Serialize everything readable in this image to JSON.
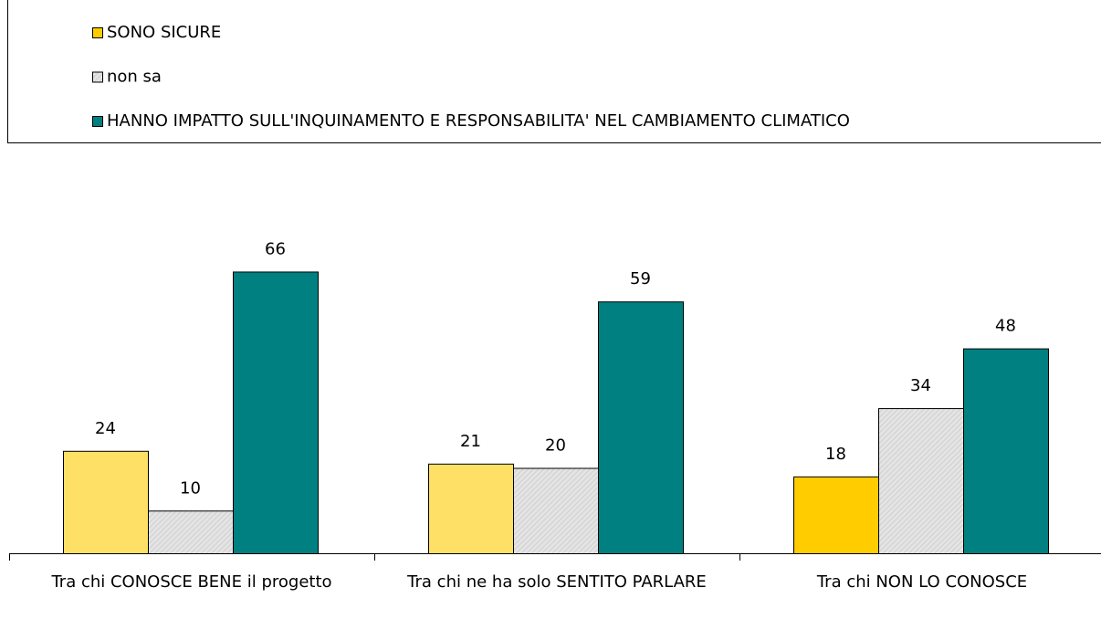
{
  "chart_data": {
    "type": "bar",
    "categories": [
      "Tra chi CONOSCE BENE il progetto",
      "Tra chi ne ha solo SENTITO PARLARE",
      "Tra chi NON LO CONOSCE"
    ],
    "series": [
      {
        "name": "SONO SICURE",
        "color": "#ffcc00",
        "colors": [
          "#ffe066",
          "#ffe066",
          "#ffcc00"
        ],
        "values": [
          24,
          21,
          18
        ]
      },
      {
        "name": "non sa",
        "color": "#e4e4e4",
        "values": [
          10,
          20,
          34
        ]
      },
      {
        "name": "HANNO IMPATTO SULL'INQUINAMENTO E RESPONSABILITA' NEL CAMBIAMENTO CLIMATICO",
        "color": "#008080",
        "values": [
          66,
          59,
          48
        ]
      }
    ],
    "ylim": [
      0,
      80
    ],
    "legend": "top"
  }
}
